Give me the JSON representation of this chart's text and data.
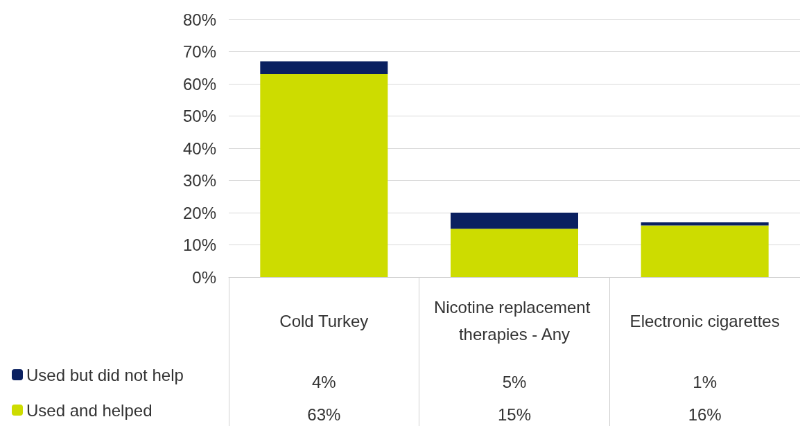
{
  "chart_data": {
    "type": "bar",
    "stacked": true,
    "categories": [
      "Cold Turkey",
      "Nicotine replacement therapies - Any",
      "Electronic cigarettes"
    ],
    "series": [
      {
        "name": "Used and helped",
        "color": "#cddc00",
        "values": [
          63,
          15,
          16
        ],
        "value_labels": [
          "63%",
          "15%",
          "16%"
        ]
      },
      {
        "name": "Used but did not help",
        "color": "#0a2060",
        "values": [
          4,
          5,
          1
        ],
        "value_labels": [
          "4%",
          "5%",
          "1%"
        ]
      }
    ],
    "ylim": [
      0,
      80
    ],
    "yticks": [
      {
        "value": 0,
        "label": "0%"
      },
      {
        "value": 10,
        "label": "10%"
      },
      {
        "value": 20,
        "label": "20%"
      },
      {
        "value": 30,
        "label": "30%"
      },
      {
        "value": 40,
        "label": "40%"
      },
      {
        "value": 50,
        "label": "50%"
      },
      {
        "value": 60,
        "label": "60%"
      },
      {
        "value": 70,
        "label": "70%"
      },
      {
        "value": 80,
        "label": "80%"
      }
    ],
    "grid": "y",
    "legend": "bottom left"
  }
}
